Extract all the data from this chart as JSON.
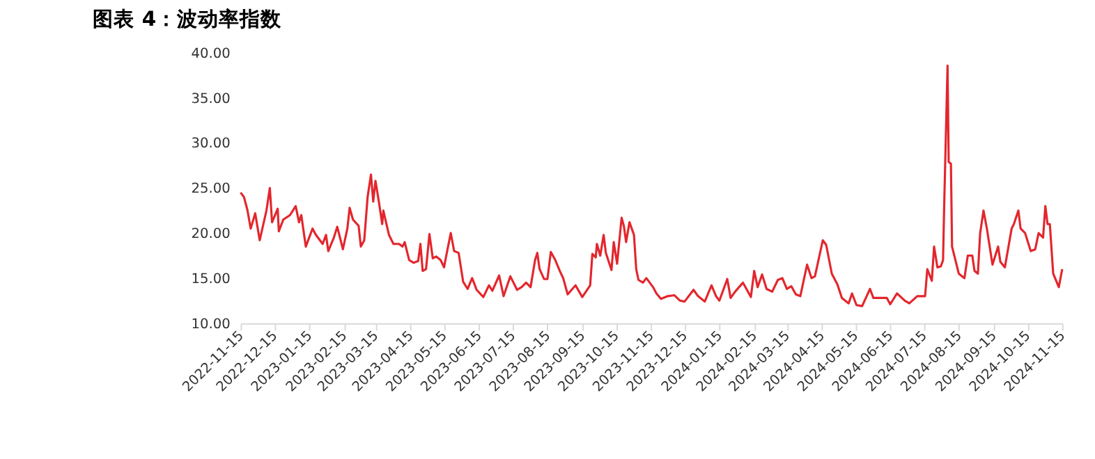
{
  "chart_data": {
    "type": "line",
    "title": "图表 4：波动率指数",
    "x": [
      "2022-11-15",
      "2022-11-18",
      "2022-11-21",
      "2022-11-24",
      "2022-11-28",
      "2022-12-02",
      "2022-12-08",
      "2022-12-11",
      "2022-12-13",
      "2022-12-18",
      "2022-12-19",
      "2022-12-23",
      "2022-12-29",
      "2023-01-03",
      "2023-01-06",
      "2023-01-08",
      "2023-01-12",
      "2023-01-18",
      "2023-01-21",
      "2023-01-27",
      "2023-01-30",
      "2023-02-01",
      "2023-02-06",
      "2023-02-09",
      "2023-02-14",
      "2023-02-18",
      "2023-02-20",
      "2023-02-23",
      "2023-02-28",
      "2023-03-02",
      "2023-03-05",
      "2023-03-08",
      "2023-03-11",
      "2023-03-13",
      "2023-03-15",
      "2023-03-18",
      "2023-03-21",
      "2023-03-22",
      "2023-03-27",
      "2023-03-31",
      "2023-04-05",
      "2023-04-08",
      "2023-04-10",
      "2023-04-14",
      "2023-04-18",
      "2023-04-22",
      "2023-04-24",
      "2023-04-26",
      "2023-04-29",
      "2023-05-02",
      "2023-05-05",
      "2023-05-08",
      "2023-05-12",
      "2023-05-15",
      "2023-05-17",
      "2023-05-21",
      "2023-05-24",
      "2023-05-28",
      "2023-06-01",
      "2023-06-05",
      "2023-06-09",
      "2023-06-13",
      "2023-06-19",
      "2023-06-24",
      "2023-06-27",
      "2023-07-03",
      "2023-07-07",
      "2023-07-13",
      "2023-07-19",
      "2023-07-23",
      "2023-07-27",
      "2023-07-31",
      "2023-08-04",
      "2023-08-06",
      "2023-08-08",
      "2023-08-12",
      "2023-08-15",
      "2023-08-18",
      "2023-08-22",
      "2023-08-26",
      "2023-08-29",
      "2023-09-02",
      "2023-09-09",
      "2023-09-15",
      "2023-09-22",
      "2023-09-24",
      "2023-09-27",
      "2023-09-28",
      "2023-10-01",
      "2023-10-04",
      "2023-10-06",
      "2023-10-11",
      "2023-10-13",
      "2023-10-16",
      "2023-10-20",
      "2023-10-22",
      "2023-10-24",
      "2023-10-27",
      "2023-10-31",
      "2023-11-02",
      "2023-11-04",
      "2023-11-08",
      "2023-11-11",
      "2023-11-17",
      "2023-11-20",
      "2023-11-24",
      "2023-11-30",
      "2023-12-06",
      "2023-12-11",
      "2023-12-15",
      "2023-12-23",
      "2023-12-27",
      "2024-01-02",
      "2024-01-08",
      "2024-01-12",
      "2024-01-15",
      "2024-01-22",
      "2024-01-25",
      "2024-01-29",
      "2024-02-05",
      "2024-02-12",
      "2024-02-15",
      "2024-02-18",
      "2024-02-22",
      "2024-02-26",
      "2024-03-02",
      "2024-03-07",
      "2024-03-11",
      "2024-03-15",
      "2024-03-19",
      "2024-03-23",
      "2024-03-27",
      "2024-04-02",
      "2024-04-06",
      "2024-04-09",
      "2024-04-16",
      "2024-04-19",
      "2024-04-24",
      "2024-04-29",
      "2024-05-03",
      "2024-05-09",
      "2024-05-12",
      "2024-05-16",
      "2024-05-21",
      "2024-05-28",
      "2024-05-31",
      "2024-06-04",
      "2024-06-12",
      "2024-06-15",
      "2024-06-18",
      "2024-06-21",
      "2024-06-28",
      "2024-07-02",
      "2024-07-09",
      "2024-07-16",
      "2024-07-18",
      "2024-07-22",
      "2024-07-24",
      "2024-07-27",
      "2024-07-30",
      "2024-08-01",
      "2024-08-02",
      "2024-08-05",
      "2024-08-06",
      "2024-08-08",
      "2024-08-09",
      "2024-08-15",
      "2024-08-20",
      "2024-08-23",
      "2024-08-27",
      "2024-08-29",
      "2024-09-01",
      "2024-09-03",
      "2024-09-06",
      "2024-09-09",
      "2024-09-14",
      "2024-09-19",
      "2024-09-21",
      "2024-09-25",
      "2024-10-01",
      "2024-10-03",
      "2024-10-07",
      "2024-10-09",
      "2024-10-13",
      "2024-10-18",
      "2024-10-22",
      "2024-10-25",
      "2024-10-29",
      "2024-10-31",
      "2024-11-02",
      "2024-11-04",
      "2024-11-07",
      "2024-11-12",
      "2024-11-15"
    ],
    "series": [
      {
        "color": "#e3262d",
        "values": [
          24.5,
          24.0,
          22.6,
          20.5,
          22.2,
          19.2,
          22.5,
          25.0,
          21.2,
          22.7,
          20.2,
          21.5,
          22.0,
          23.0,
          21.2,
          22.0,
          18.5,
          20.5,
          19.8,
          18.8,
          19.8,
          18.0,
          19.5,
          20.7,
          18.2,
          20.5,
          22.8,
          21.5,
          20.8,
          18.5,
          19.2,
          24.0,
          26.5,
          23.5,
          25.8,
          23.5,
          21.0,
          22.5,
          19.8,
          18.8,
          18.8,
          18.5,
          19.0,
          17.0,
          16.7,
          16.9,
          18.8,
          15.8,
          16.0,
          19.9,
          17.2,
          17.4,
          17.0,
          16.2,
          17.5,
          20.0,
          18.0,
          17.8,
          14.6,
          13.8,
          15.0,
          13.7,
          12.9,
          14.2,
          13.6,
          15.3,
          13.0,
          15.2,
          13.7,
          14.0,
          14.5,
          14.0,
          17.0,
          17.8,
          16.0,
          14.9,
          14.9,
          17.9,
          17.0,
          15.8,
          15.0,
          13.2,
          14.2,
          12.9,
          14.2,
          17.7,
          17.3,
          18.8,
          17.5,
          19.8,
          17.8,
          15.9,
          19.0,
          16.6,
          21.7,
          20.8,
          19.0,
          21.2,
          19.8,
          16.0,
          14.8,
          14.5,
          15.0,
          14.0,
          13.3,
          12.7,
          13.0,
          13.1,
          12.5,
          12.4,
          13.7,
          13.0,
          12.4,
          14.2,
          13.0,
          12.5,
          14.9,
          12.8,
          13.5,
          14.5,
          12.9,
          15.8,
          14.0,
          15.4,
          13.8,
          13.5,
          14.8,
          15.0,
          13.8,
          14.1,
          13.2,
          13.0,
          16.5,
          15.0,
          15.2,
          19.2,
          18.7,
          15.5,
          14.3,
          12.8,
          12.2,
          13.3,
          12.0,
          11.9,
          13.8,
          12.8,
          12.8,
          12.8,
          12.1,
          12.7,
          13.3,
          12.5,
          12.2,
          13.0,
          13.0,
          16.0,
          14.7,
          18.5,
          16.2,
          16.3,
          17.0,
          23.0,
          38.6,
          27.9,
          27.7,
          18.5,
          15.5,
          15.0,
          17.5,
          17.5,
          15.8,
          15.5,
          20.0,
          22.5,
          20.5,
          16.5,
          18.5,
          16.8,
          16.2,
          20.5,
          21.0,
          22.5,
          20.5,
          20.0,
          18.0,
          18.2,
          20.0,
          19.5,
          23.0,
          21.0,
          21.0,
          15.5,
          14.0,
          16.0
        ]
      }
    ],
    "xlim": [
      "2022-11-15",
      "2024-11-15"
    ],
    "xticks": [
      "2022-11-15",
      "2022-12-15",
      "2023-01-15",
      "2023-02-15",
      "2023-03-15",
      "2023-04-15",
      "2023-05-15",
      "2023-06-15",
      "2023-07-15",
      "2023-08-15",
      "2023-09-15",
      "2023-10-15",
      "2023-11-15",
      "2023-12-15",
      "2024-01-15",
      "2024-02-15",
      "2024-03-15",
      "2024-04-15",
      "2024-05-15",
      "2024-06-15",
      "2024-07-15",
      "2024-08-15",
      "2024-09-15",
      "2024-10-15",
      "2024-11-15"
    ],
    "ylim": [
      10,
      40
    ],
    "yticks": [
      {
        "value": 10,
        "label": "10.00"
      },
      {
        "value": 15,
        "label": "15.00"
      },
      {
        "value": 20,
        "label": "20.00"
      },
      {
        "value": 25,
        "label": "25.00"
      },
      {
        "value": 30,
        "label": "30.00"
      },
      {
        "value": 35,
        "label": "35.00"
      },
      {
        "value": 40,
        "label": "40.00"
      }
    ],
    "grid": false,
    "legend": false,
    "marker": "none",
    "line_style": "solid"
  }
}
